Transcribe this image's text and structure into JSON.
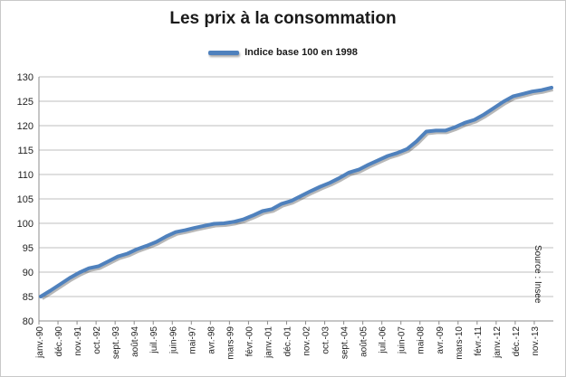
{
  "chart_data": {
    "type": "line",
    "title": "Les prix à la consommation",
    "xlabel": "",
    "ylabel": "",
    "ylim": [
      80,
      130
    ],
    "yticks": [
      80,
      85,
      90,
      95,
      100,
      105,
      110,
      115,
      120,
      125,
      130
    ],
    "grid": true,
    "legend": "top-center",
    "source": "Source : Insee",
    "color": "#4f81bd",
    "x_tick_labels": [
      "janv.-90",
      "déc.-90",
      "nov.-91",
      "oct.-92",
      "sept.-93",
      "août-94",
      "juil.-95",
      "juin-96",
      "mai-97",
      "avr.-98",
      "mars-99",
      "févr.-00",
      "janv.-01",
      "déc.-01",
      "nov.-02",
      "oct.-03",
      "sept.-04",
      "août-05",
      "juil.-06",
      "juin-07",
      "mai-08",
      "avr.-09",
      "mars-10",
      "févr.-11",
      "janv.-12",
      "déc.-12",
      "nov.-13"
    ],
    "series": [
      {
        "name": "Indice base 100 en 1998",
        "x": [
          "janv.-90",
          "juil.-90",
          "déc.-90",
          "juin-91",
          "nov.-91",
          "mai-92",
          "oct.-92",
          "avr.-93",
          "sept.-93",
          "mars-94",
          "août-94",
          "févr.-95",
          "juil.-95",
          "janv.-96",
          "juin-96",
          "déc.-96",
          "mai-97",
          "nov.-97",
          "avr.-98",
          "oct.-98",
          "mars-99",
          "sept.-99",
          "févr.-00",
          "août-00",
          "janv.-01",
          "juil.-01",
          "déc.-01",
          "juin-02",
          "nov.-02",
          "mai-03",
          "oct.-03",
          "avr.-04",
          "sept.-04",
          "mars-05",
          "août-05",
          "févr.-06",
          "juil.-06",
          "janv.-07",
          "juin-07",
          "déc.-07",
          "mai-08",
          "nov.-08",
          "avr.-09",
          "oct.-09",
          "mars-10",
          "sept.-10",
          "févr.-11",
          "août-11",
          "janv.-12",
          "juil.-12",
          "déc.-12",
          "juin-13",
          "nov.-13",
          "déc.-13"
        ],
        "values": [
          85.0,
          86.2,
          87.5,
          88.8,
          89.9,
          90.8,
          91.2,
          92.2,
          93.2,
          93.8,
          94.7,
          95.4,
          96.2,
          97.3,
          98.2,
          98.6,
          99.1,
          99.5,
          99.9,
          100.0,
          100.3,
          100.8,
          101.6,
          102.5,
          102.9,
          104.0,
          104.6,
          105.6,
          106.6,
          107.5,
          108.3,
          109.3,
          110.4,
          111.0,
          112.0,
          112.9,
          113.8,
          114.4,
          115.2,
          116.8,
          118.8,
          119.0,
          119.0,
          119.7,
          120.6,
          121.2,
          122.3,
          123.6,
          124.9,
          126.0,
          126.5,
          127.0,
          127.3,
          127.8
        ]
      }
    ]
  }
}
